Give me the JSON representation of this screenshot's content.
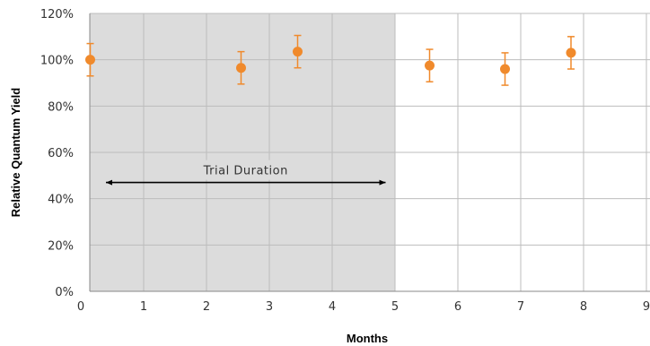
{
  "chart_data": {
    "type": "scatter",
    "title": "",
    "xlabel": "Months",
    "ylabel": "Relative Quantum Yield",
    "xlim": [
      0,
      9
    ],
    "ylim": [
      0,
      120
    ],
    "x_ticks": [
      0,
      1,
      2,
      3,
      4,
      5,
      6,
      7,
      8,
      9
    ],
    "x_tick_labels": [
      "0",
      "1",
      "2",
      "3",
      "4",
      "5",
      "6",
      "7",
      "8",
      "9"
    ],
    "y_ticks": [
      0,
      20,
      40,
      60,
      80,
      100,
      120
    ],
    "y_tick_labels": [
      "0%",
      "20%",
      "40%",
      "60%",
      "80%",
      "100%",
      "120%"
    ],
    "grid": true,
    "series": [
      {
        "points": [
          {
            "x": 0.15,
            "y": 100,
            "err": 7
          },
          {
            "x": 2.55,
            "y": 96.5,
            "err": 7
          },
          {
            "x": 3.45,
            "y": 103.5,
            "err": 7
          },
          {
            "x": 5.55,
            "y": 97.5,
            "err": 7
          },
          {
            "x": 6.75,
            "y": 96,
            "err": 7
          },
          {
            "x": 7.8,
            "y": 103,
            "err": 7
          }
        ]
      }
    ],
    "shaded_region": {
      "x_start": 0,
      "x_end": 5
    },
    "annotation": {
      "text": "Trial Duration",
      "x_start": 0.4,
      "x_end": 4.85,
      "y": 47
    },
    "colors": {
      "marker": "#f08a2c",
      "shade": "#dcdcdc",
      "grid": "#bdbdbd",
      "axis": "#888888",
      "arrow": "#000000"
    }
  }
}
